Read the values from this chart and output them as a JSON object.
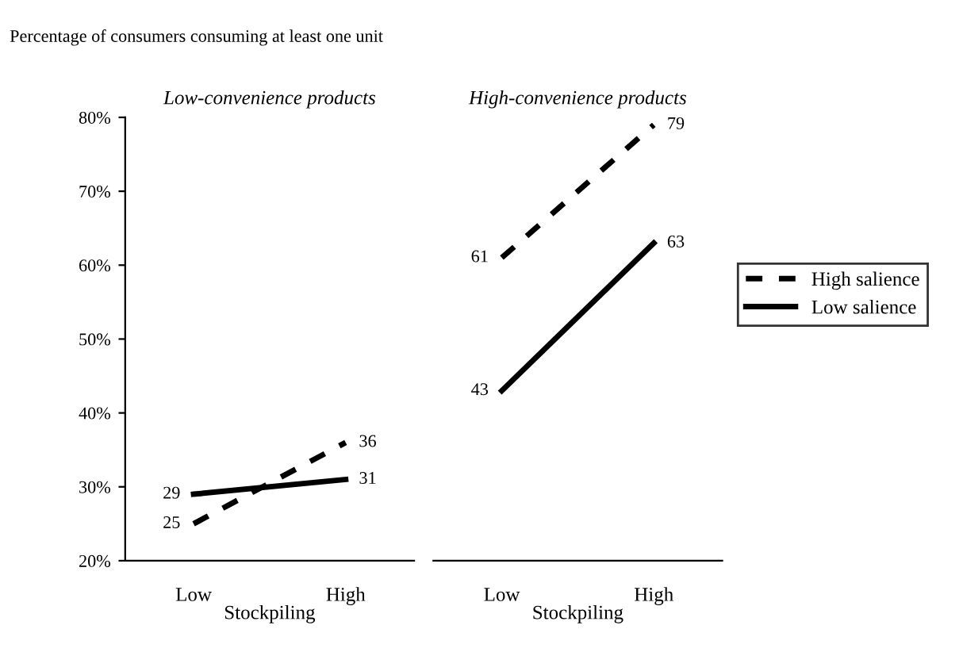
{
  "chart_data": [
    {
      "type": "line",
      "title": "Low-convenience products",
      "ylabel": "Percentage of consumers consuming at least one unit",
      "xlabel": "Stockpiling",
      "categories": [
        "Low",
        "High"
      ],
      "series": [
        {
          "color": "#000000",
          "line_style": "dashed",
          "values": [
            25,
            36
          ]
        },
        {
          "color": "#000000",
          "line_style": "solid",
          "values": [
            29,
            31
          ]
        }
      ],
      "ylim": [
        20,
        80
      ],
      "yticks": [
        {
          "value": 20,
          "label": "20%"
        },
        {
          "value": 30,
          "label": "30%"
        },
        {
          "value": 40,
          "label": "40%"
        },
        {
          "value": 50,
          "label": "50%"
        },
        {
          "value": 60,
          "label": "60%"
        },
        {
          "value": 70,
          "label": "70%"
        },
        {
          "value": 80,
          "label": "80%"
        }
      ],
      "data_labels": true,
      "grid": false
    },
    {
      "type": "line",
      "title": "High-convenience products",
      "xlabel": "Stockpiling",
      "categories": [
        "Low",
        "High"
      ],
      "series": [
        {
          "name": "High salience",
          "color": "#000000",
          "line_style": "dashed",
          "values": [
            61,
            79
          ]
        },
        {
          "name": "Low salience",
          "color": "#000000",
          "line_style": "solid",
          "values": [
            43,
            63
          ]
        }
      ],
      "ylim": [
        20,
        80
      ],
      "tick_labels": "x",
      "data_labels": true,
      "grid": false,
      "legend": "right"
    }
  ]
}
